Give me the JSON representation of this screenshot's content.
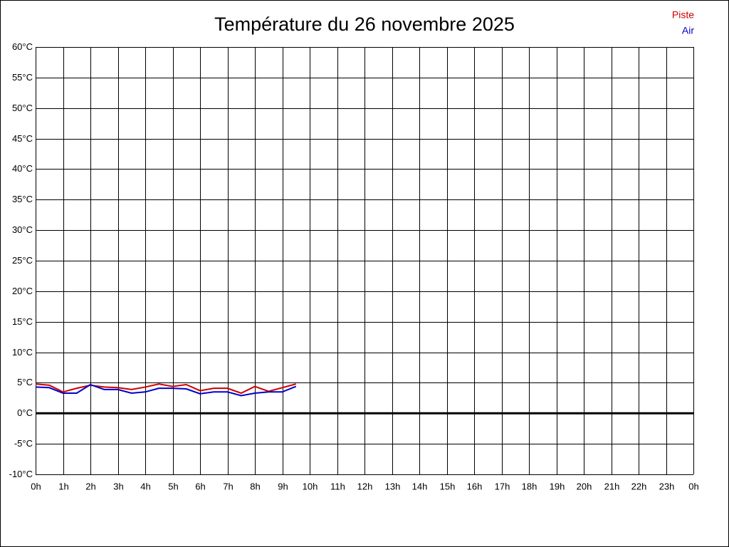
{
  "chart_data": {
    "type": "line",
    "title": "Température du 26 novembre 2025",
    "x": [
      0,
      0.5,
      1,
      1.5,
      2,
      2.5,
      3,
      3.5,
      4,
      4.5,
      5,
      5.5,
      6,
      6.5,
      7,
      7.5,
      8,
      8.5,
      9,
      9.5
    ],
    "series": [
      {
        "name": "Piste",
        "color": "#cc0000",
        "values": [
          4.8,
          4.6,
          3.5,
          4.1,
          4.6,
          4.3,
          4.2,
          3.9,
          4.3,
          4.8,
          4.4,
          4.7,
          3.7,
          4.1,
          4.1,
          3.3,
          4.4,
          3.6,
          4.2,
          4.8
        ]
      },
      {
        "name": "Air",
        "color": "#0000cc",
        "values": [
          4.3,
          4.2,
          3.3,
          3.3,
          4.7,
          3.9,
          3.9,
          3.3,
          3.5,
          4.1,
          4.1,
          4.0,
          3.2,
          3.5,
          3.5,
          2.9,
          3.3,
          3.5,
          3.5,
          4.4
        ]
      }
    ],
    "xlim": [
      0,
      24
    ],
    "xticks": [
      {
        "value": 0,
        "label": "0h"
      },
      {
        "value": 1,
        "label": "1h"
      },
      {
        "value": 2,
        "label": "2h"
      },
      {
        "value": 3,
        "label": "3h"
      },
      {
        "value": 4,
        "label": "4h"
      },
      {
        "value": 5,
        "label": "5h"
      },
      {
        "value": 6,
        "label": "6h"
      },
      {
        "value": 7,
        "label": "7h"
      },
      {
        "value": 8,
        "label": "8h"
      },
      {
        "value": 9,
        "label": "9h"
      },
      {
        "value": 10,
        "label": "10h"
      },
      {
        "value": 11,
        "label": "11h"
      },
      {
        "value": 12,
        "label": "12h"
      },
      {
        "value": 13,
        "label": "13h"
      },
      {
        "value": 14,
        "label": "14h"
      },
      {
        "value": 15,
        "label": "15h"
      },
      {
        "value": 16,
        "label": "16h"
      },
      {
        "value": 17,
        "label": "17h"
      },
      {
        "value": 18,
        "label": "18h"
      },
      {
        "value": 19,
        "label": "19h"
      },
      {
        "value": 20,
        "label": "20h"
      },
      {
        "value": 21,
        "label": "21h"
      },
      {
        "value": 22,
        "label": "22h"
      },
      {
        "value": 23,
        "label": "23h"
      },
      {
        "value": 24,
        "label": "0h"
      }
    ],
    "ylim": [
      -10,
      60
    ],
    "yticks": [
      {
        "value": -10,
        "label": "-10°C"
      },
      {
        "value": -5,
        "label": "-5°C"
      },
      {
        "value": 0,
        "label": "0°C"
      },
      {
        "value": 5,
        "label": "5°C"
      },
      {
        "value": 10,
        "label": "10°C"
      },
      {
        "value": 15,
        "label": "15°C"
      },
      {
        "value": 20,
        "label": "20°C"
      },
      {
        "value": 25,
        "label": "25°C"
      },
      {
        "value": 30,
        "label": "30°C"
      },
      {
        "value": 35,
        "label": "35°C"
      },
      {
        "value": 40,
        "label": "40°C"
      },
      {
        "value": 45,
        "label": "45°C"
      },
      {
        "value": 50,
        "label": "50°C"
      },
      {
        "value": 55,
        "label": "55°C"
      },
      {
        "value": 60,
        "label": "60°C"
      }
    ],
    "grid": true,
    "zero_line": true,
    "legend": "upper right"
  }
}
